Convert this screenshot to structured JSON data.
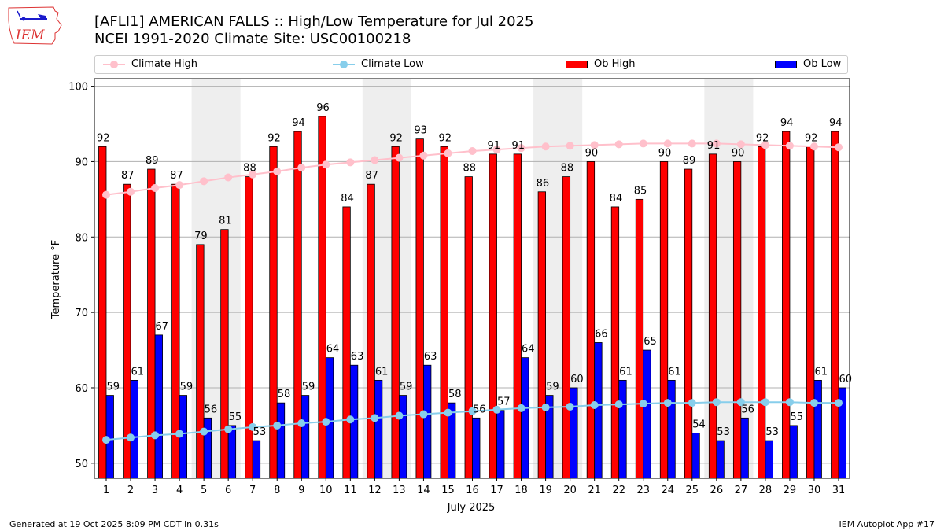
{
  "header": {
    "title_line1": "[AFLI1] AMERICAN FALLS :: High/Low Temperature for Jul 2025",
    "title_line2": "NCEI 1991-2020 Climate Site: USC00100218",
    "logo_text": "IEM"
  },
  "footer": {
    "generated": "Generated at 19 Oct 2025 8:09 PM CDT in 0.31s",
    "app": "IEM Autoplot App #17"
  },
  "colors": {
    "climate_high": "#ffc0cb",
    "climate_low": "#87ceeb",
    "ob_high": "#ff0000",
    "ob_low": "#0000ff",
    "weekend_shade": "#eeeeee"
  },
  "chart_data": {
    "type": "bar",
    "title": "[AFLI1] AMERICAN FALLS :: High/Low Temperature for Jul 2025",
    "subtitle": "NCEI 1991-2020 Climate Site: USC00100218",
    "xlabel": "July 2025",
    "ylabel": "Temperature °F",
    "ylim": [
      48,
      101
    ],
    "yticks": [
      50,
      60,
      70,
      80,
      90,
      100
    ],
    "grid": "y",
    "legend_position": "top",
    "categories": [
      "1",
      "2",
      "3",
      "4",
      "5",
      "6",
      "7",
      "8",
      "9",
      "10",
      "11",
      "12",
      "13",
      "14",
      "15",
      "16",
      "17",
      "18",
      "19",
      "20",
      "21",
      "22",
      "23",
      "24",
      "25",
      "26",
      "27",
      "28",
      "29",
      "30",
      "31"
    ],
    "shaded_days": [
      5,
      6,
      12,
      13,
      19,
      20,
      26,
      27
    ],
    "series": [
      {
        "name": "Climate High",
        "kind": "line",
        "values": [
          85.6,
          86.0,
          86.5,
          86.9,
          87.4,
          87.9,
          88.3,
          88.7,
          89.2,
          89.6,
          89.9,
          90.2,
          90.5,
          90.8,
          91.1,
          91.4,
          91.6,
          91.8,
          92.0,
          92.1,
          92.2,
          92.3,
          92.4,
          92.4,
          92.4,
          92.4,
          92.3,
          92.2,
          92.1,
          92.0,
          91.9
        ]
      },
      {
        "name": "Climate Low",
        "kind": "line",
        "values": [
          53.1,
          53.4,
          53.7,
          53.9,
          54.2,
          54.5,
          54.8,
          55.0,
          55.3,
          55.5,
          55.8,
          56.0,
          56.3,
          56.5,
          56.7,
          56.9,
          57.1,
          57.3,
          57.4,
          57.5,
          57.7,
          57.8,
          57.9,
          58.0,
          58.0,
          58.1,
          58.1,
          58.1,
          58.1,
          58.0,
          58.0
        ]
      },
      {
        "name": "Ob High",
        "kind": "bar",
        "values": [
          92,
          87,
          89,
          87,
          79,
          81,
          88,
          92,
          94,
          96,
          84,
          87,
          92,
          93,
          92,
          88,
          91,
          91,
          86,
          88,
          90,
          84,
          85,
          90,
          89,
          91,
          90,
          92,
          94,
          92,
          94
        ]
      },
      {
        "name": "Ob Low",
        "kind": "bar",
        "values": [
          59,
          61,
          67,
          59,
          56,
          55,
          53,
          58,
          59,
          64,
          63,
          61,
          59,
          63,
          58,
          56,
          57,
          64,
          59,
          60,
          66,
          61,
          65,
          61,
          54,
          53,
          56,
          53,
          55,
          61,
          60
        ]
      }
    ]
  }
}
